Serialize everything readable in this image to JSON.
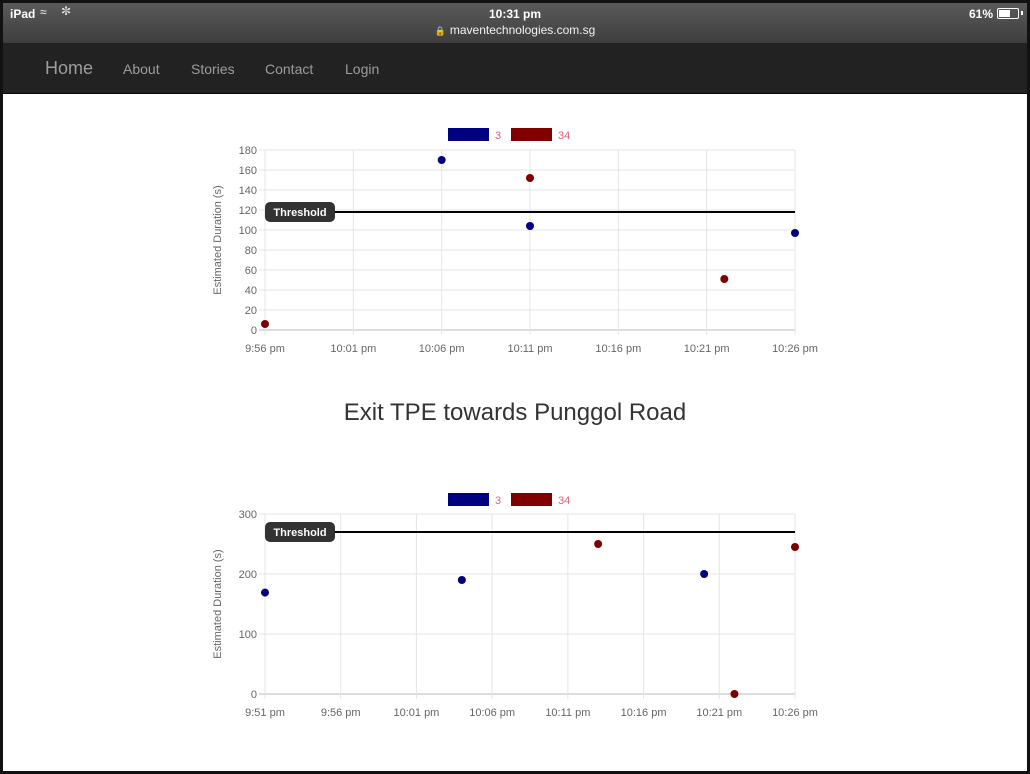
{
  "status_bar": {
    "device": "iPad",
    "time": "10:31 pm",
    "url": "maventechnologies.com.sg",
    "battery": "61%",
    "battery_level": 0.61
  },
  "navbar": {
    "brand": "Home",
    "links": [
      "About",
      "Stories",
      "Contact",
      "Login"
    ]
  },
  "section_title": "Exit TPE towards Punggol Road",
  "chart_data": [
    {
      "type": "scatter",
      "ylabel": "Estimated Duration (s)",
      "xlabel": "",
      "ylim": [
        0,
        180
      ],
      "yticks": [
        0,
        20,
        40,
        60,
        80,
        100,
        120,
        140,
        160,
        180
      ],
      "x_ticks": [
        "9:56 pm",
        "10:01 pm",
        "10:06 pm",
        "10:11 pm",
        "10:16 pm",
        "10:21 pm",
        "10:26 pm"
      ],
      "xlim": [
        "9:56 pm",
        "10:26 pm"
      ],
      "legend_position": "top-center",
      "threshold": {
        "label": "Threshold",
        "value": 118
      },
      "series": [
        {
          "name": "3",
          "color": "#000080",
          "points": [
            {
              "x": "10:06 pm",
              "y": 170
            },
            {
              "x": "10:11 pm",
              "y": 104
            },
            {
              "x": "10:26 pm",
              "y": 97
            }
          ]
        },
        {
          "name": "34",
          "color": "#800000",
          "points": [
            {
              "x": "9:56 pm",
              "y": 6
            },
            {
              "x": "10:11 pm",
              "y": 152
            },
            {
              "x": "10:22 pm",
              "y": 51
            }
          ]
        }
      ]
    },
    {
      "type": "scatter",
      "ylabel": "Estimated Duration (s)",
      "xlabel": "",
      "ylim": [
        0,
        300
      ],
      "yticks": [
        0,
        100,
        200,
        300
      ],
      "x_ticks": [
        "9:51 pm",
        "9:56 pm",
        "10:01 pm",
        "10:06 pm",
        "10:11 pm",
        "10:16 pm",
        "10:21 pm",
        "10:26 pm"
      ],
      "xlim": [
        "9:51 pm",
        "10:26 pm"
      ],
      "legend_position": "top-center",
      "threshold": {
        "label": "Threshold",
        "value": 270
      },
      "series": [
        {
          "name": "3",
          "color": "#000080",
          "points": [
            {
              "x": "9:51 pm",
              "y": 169
            },
            {
              "x": "10:04 pm",
              "y": 190
            },
            {
              "x": "10:20 pm",
              "y": 200
            }
          ]
        },
        {
          "name": "34",
          "color": "#800000",
          "points": [
            {
              "x": "10:13 pm",
              "y": 250
            },
            {
              "x": "10:22 pm",
              "y": 0
            },
            {
              "x": "10:26 pm",
              "y": 245
            }
          ]
        }
      ]
    }
  ]
}
